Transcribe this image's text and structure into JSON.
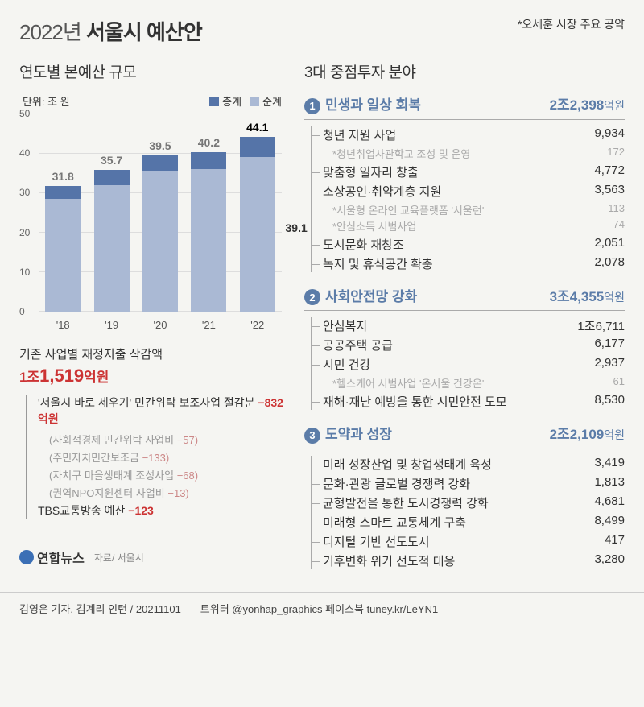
{
  "title_year": "2022년",
  "title_main": "서울시 예산안",
  "header_note": "*오세훈 시장 주요 공약",
  "chart": {
    "title": "연도별 본예산 규모",
    "unit": "단위: 조 원",
    "legend_total": "총계",
    "legend_net": "순계",
    "color_total": "#5574a8",
    "color_net": "#aab9d4",
    "ymax": 50,
    "yticks": [
      0,
      10,
      20,
      30,
      40,
      50
    ],
    "years": [
      "'18",
      "'19",
      "'20",
      "'21",
      "'22"
    ],
    "total_values": [
      31.8,
      35.7,
      39.5,
      40.2,
      44.1
    ],
    "net_values": [
      28.5,
      32.0,
      35.5,
      36.0,
      39.1
    ],
    "show_top_labels": [
      "31.8",
      "35.7",
      "39.5",
      "40.2",
      "44.1"
    ],
    "side_label_value": "39.1",
    "side_label_idx": 4
  },
  "cuts": {
    "title": "기존 사업별 재정지출 삭감액",
    "amount_prefix": "1조",
    "amount_main": "1,519",
    "amount_unit": "억원",
    "item1_label": "'서울시 바로 세우기' 민간위탁 보조사업 절감분",
    "item1_value": "−832억원",
    "subs": [
      {
        "label": "(사회적경제 민간위탁 사업비",
        "val": "−57)"
      },
      {
        "label": "(주민자치민간보조금",
        "val": "−133)"
      },
      {
        "label": "(자치구 마을생태계 조성사업",
        "val": "−68)"
      },
      {
        "label": "(권역NPO지원센터 사업비",
        "val": "−13)"
      }
    ],
    "item2_label": "TBS교통방송 예산",
    "item2_value": "−123"
  },
  "right_title": "3대 중점투자 분야",
  "focus": [
    {
      "num": "1",
      "title": "민생과 일상 회복",
      "amount": "2조2,398",
      "amount_unit": "억원",
      "items": [
        {
          "label": "청년 지원 사업",
          "val": "9,934",
          "subs": [
            {
              "label": "*청년취업사관학교 조성 및 운영",
              "val": "172"
            }
          ]
        },
        {
          "label": "맞춤형 일자리 창출",
          "val": "4,772"
        },
        {
          "label": "소상공인·취약계층 지원",
          "val": "3,563",
          "subs": [
            {
              "label": "*서울형 온라인 교육플랫폼 '서울런'",
              "val": "113"
            },
            {
              "label": "*안심소득 시범사업",
              "val": "74"
            }
          ]
        },
        {
          "label": "도시문화 재창조",
          "val": "2,051"
        },
        {
          "label": "녹지 및 휴식공간 확충",
          "val": "2,078"
        }
      ]
    },
    {
      "num": "2",
      "title": "사회안전망 강화",
      "amount": "3조4,355",
      "amount_unit": "억원",
      "items": [
        {
          "label": "안심복지",
          "val": "1조6,711"
        },
        {
          "label": "공공주택 공급",
          "val": "6,177"
        },
        {
          "label": "시민 건강",
          "val": "2,937",
          "subs": [
            {
              "label": "*헬스케어 시범사업 '온서울 건강온'",
              "val": "61"
            }
          ]
        },
        {
          "label": "재해·재난 예방을 통한 시민안전 도모",
          "val": "8,530"
        }
      ]
    },
    {
      "num": "3",
      "title": "도약과 성장",
      "amount": "2조2,109",
      "amount_unit": "억원",
      "items": [
        {
          "label": "미래 성장산업 및 창업생태계 육성",
          "val": "3,419"
        },
        {
          "label": "문화·관광 글로벌 경쟁력 강화",
          "val": "1,813"
        },
        {
          "label": "균형발전을 통한 도시경쟁력 강화",
          "val": "4,681"
        },
        {
          "label": "미래형 스마트 교통체계 구축",
          "val": "8,499"
        },
        {
          "label": "디지털 기반 선도도시",
          "val": "417"
        },
        {
          "label": "기후변화 위기 선도적 대응",
          "val": "3,280"
        }
      ]
    }
  ],
  "source_logo": "연합뉴스",
  "source_text": "자료/ 서울시",
  "footer_reporters": "김영은 기자, 김계리 인턴 / 20211101",
  "footer_social": "트위터 @yonhap_graphics  페이스북 tuney.kr/LeYN1"
}
